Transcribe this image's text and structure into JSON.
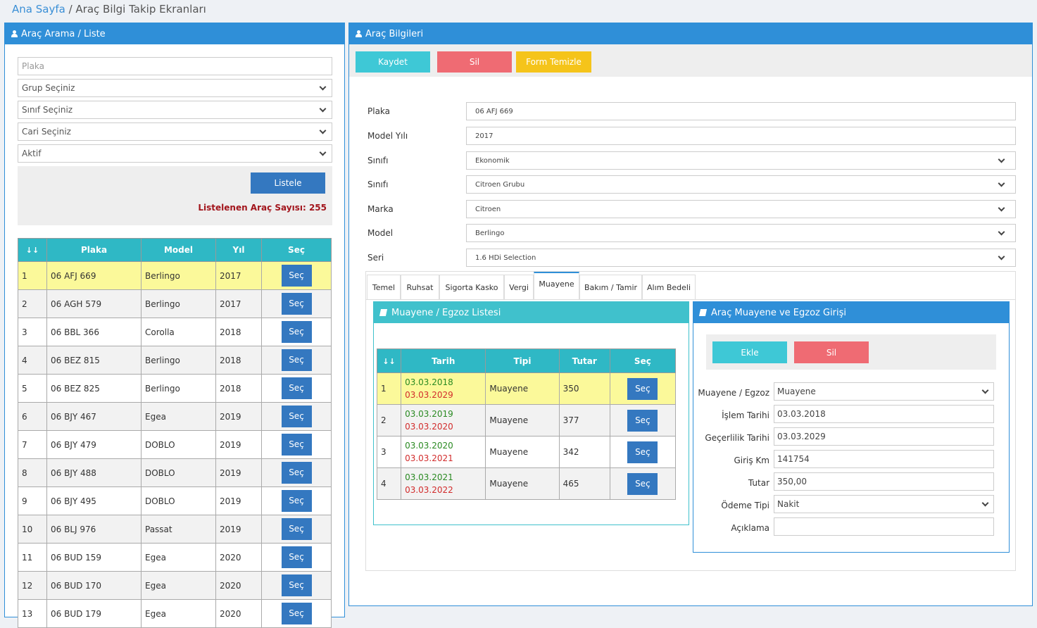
{
  "breadcrumb": {
    "home": "Ana Sayfa",
    "separator": " / ",
    "current": "Araç Bilgi Takip Ekranları"
  },
  "left_panel": {
    "title": "Araç Arama / Liste",
    "plaka_placeholder": "Plaka",
    "grup": "Grup Seçiniz",
    "sinif": "Sınıf Seçiniz",
    "cari": "Cari Seçiniz",
    "durum": "Aktif",
    "listele": "Listele",
    "count_label": "Listelenen Araç Sayısı: 255",
    "table": {
      "headers": [
        "↓↓",
        "Plaka",
        "Model",
        "Yıl",
        "Seç"
      ],
      "sec_label": "Seç",
      "rows": [
        [
          "1",
          "06 AFJ 669",
          "Berlingo",
          "2017"
        ],
        [
          "2",
          "06 AGH 579",
          "Berlingo",
          "2017"
        ],
        [
          "3",
          "06 BBL 366",
          "Corolla",
          "2018"
        ],
        [
          "4",
          "06 BEZ 815",
          "Berlingo",
          "2018"
        ],
        [
          "5",
          "06 BEZ 825",
          "Berlingo",
          "2018"
        ],
        [
          "6",
          "06 BJY 467",
          "Egea",
          "2019"
        ],
        [
          "7",
          "06 BJY 479",
          "DOBLO",
          "2019"
        ],
        [
          "8",
          "06 BJY 488",
          "DOBLO",
          "2019"
        ],
        [
          "9",
          "06 BJY 495",
          "DOBLO",
          "2019"
        ],
        [
          "10",
          "06 BLJ 976",
          "Passat",
          "2019"
        ],
        [
          "11",
          "06 BUD 159",
          "Egea",
          "2020"
        ],
        [
          "12",
          "06 BUD 170",
          "Egea",
          "2020"
        ],
        [
          "13",
          "06 BUD 179",
          "Egea",
          "2020"
        ]
      ]
    }
  },
  "right_panel": {
    "title": "Araç Bilgileri",
    "kaydet": "Kaydet",
    "sil": "Sil",
    "temizle": "Form Temizle",
    "fields": [
      {
        "label": "Plaka",
        "value": "06 AFJ 669"
      },
      {
        "label": "Model Yılı",
        "value": "2017"
      },
      {
        "label": "Sınıfı",
        "value": "Ekonomik"
      },
      {
        "label": "Sınıfı",
        "value": "Citroen Grubu"
      },
      {
        "label": "Marka",
        "value": "Citroen"
      },
      {
        "label": "Model",
        "value": "Berlingo"
      },
      {
        "label": "Seri",
        "value": "1.6 HDi Selection"
      }
    ],
    "tabs": [
      "Temel",
      "Ruhsat",
      "Sigorta Kasko",
      "Vergi",
      "Muayene",
      "Bakım / Tamir",
      "Alım Bedeli"
    ],
    "active_tab": "Muayene",
    "list_title": "Muayene / Egzoz Listesi",
    "list_table": {
      "headers": [
        "↓↓",
        "Tarih",
        "Tipi",
        "Tutar",
        "Seç"
      ],
      "sec_label": "Seç",
      "rows": [
        {
          "no": "1",
          "tarih1": "03.03.2018",
          "tarih2": "03.03.2029",
          "tipi": "Muayene",
          "tutar": "350"
        },
        {
          "no": "2",
          "tarih1": "03.03.2019",
          "tarih2": "03.03.2020",
          "tipi": "Muayene",
          "tutar": "377"
        },
        {
          "no": "3",
          "tarih1": "03.03.2020",
          "tarih2": "03.03.2021",
          "tipi": "Muayene",
          "tutar": "342"
        },
        {
          "no": "4",
          "tarih1": "03.03.2021",
          "tarih2": "03.03.2022",
          "tipi": "Muayene",
          "tutar": "465"
        }
      ]
    },
    "form_title": "Araç Muayene ve Egzoz Girişi",
    "ekle": "Ekle",
    "form_sil": "Sil",
    "form_fields": [
      {
        "label": "Muayene / Egzoz",
        "value": "Muayene"
      },
      {
        "label": "İşlem Tarihi",
        "value": "03.03.2018"
      },
      {
        "label": "Geçerlilik Tarihi",
        "value": "03.03.2029"
      },
      {
        "label": "Giriş Km",
        "value": "141754"
      },
      {
        "label": "Tutar",
        "value": "350,00"
      },
      {
        "label": "Ödeme Tipi",
        "value": "Nakit"
      },
      {
        "label": "Açıklama",
        "value": ""
      }
    ]
  },
  "colors": {
    "primary": "#2f8fd8",
    "teal": "#3ec8d6",
    "red": "#ef6b73",
    "yellow": "#f5c41a",
    "selected_row": "#fbf99a"
  }
}
